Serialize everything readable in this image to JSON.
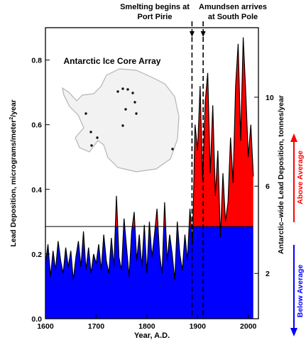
{
  "chart_data": {
    "type": "area",
    "title": "",
    "inset_label": "Antarctic Ice Core Array",
    "xlabel": "Year, A.D.",
    "ylabel": "Lead Deposition, micrograms/meter",
    "ylabel_sup": "2",
    "ylabel_tail": "/year",
    "y2label": "Antarctic–wide Lead Deposition, tonnes/year",
    "xlim": [
      1600,
      2020
    ],
    "ylim": [
      0,
      0.9
    ],
    "baseline": 0.285,
    "x_ticks": [
      "1600",
      "1700",
      "1800",
      "1900",
      "2000"
    ],
    "y_ticks": [
      "0.0",
      "0.2",
      "0.4",
      "0.6",
      "0.8"
    ],
    "y2_ticks": [
      {
        "label": "2",
        "y": 0.14
      },
      {
        "label": "6",
        "y": 0.41
      },
      {
        "label": "10",
        "y": 0.685
      }
    ],
    "colors": {
      "above": "#ff0000",
      "below": "#0000ff",
      "line": "#000000"
    },
    "legend": {
      "above": "Above Average",
      "below": "Below Average"
    },
    "events": [
      {
        "x": 1889,
        "label1": "Smelting begins at",
        "label2": "Port Pirie"
      },
      {
        "x": 1911,
        "label1": "Amundsen arrives",
        "label2": "at South Pole"
      }
    ],
    "series": [
      {
        "x": [
          1600,
          1605,
          1610,
          1615,
          1620,
          1625,
          1630,
          1635,
          1640,
          1645,
          1650,
          1655,
          1660,
          1665,
          1670,
          1675,
          1680,
          1685,
          1690,
          1695,
          1700,
          1705,
          1710,
          1715,
          1720,
          1725,
          1730,
          1735,
          1740,
          1745,
          1750,
          1755,
          1760,
          1765,
          1770,
          1775,
          1780,
          1785,
          1790,
          1795,
          1800,
          1805,
          1810,
          1815,
          1820,
          1825,
          1830,
          1835,
          1840,
          1845,
          1850,
          1855,
          1860,
          1865,
          1870,
          1875,
          1880,
          1885,
          1890,
          1895,
          1900,
          1905,
          1910,
          1915,
          1920,
          1925,
          1930,
          1935,
          1940,
          1945,
          1950,
          1955,
          1960,
          1965,
          1970,
          1975,
          1980,
          1985,
          1990,
          1995,
          2000,
          2005,
          2010
        ],
        "values": [
          0.17,
          0.23,
          0.13,
          0.21,
          0.15,
          0.24,
          0.18,
          0.14,
          0.22,
          0.16,
          0.21,
          0.12,
          0.19,
          0.24,
          0.16,
          0.27,
          0.15,
          0.22,
          0.14,
          0.2,
          0.17,
          0.23,
          0.15,
          0.26,
          0.18,
          0.14,
          0.25,
          0.16,
          0.38,
          0.19,
          0.15,
          0.31,
          0.22,
          0.13,
          0.27,
          0.33,
          0.18,
          0.26,
          0.16,
          0.29,
          0.14,
          0.3,
          0.19,
          0.26,
          0.34,
          0.2,
          0.14,
          0.36,
          0.18,
          0.26,
          0.2,
          0.12,
          0.3,
          0.2,
          0.15,
          0.26,
          0.18,
          0.34,
          0.23,
          0.6,
          0.52,
          0.72,
          0.43,
          0.67,
          0.76,
          0.45,
          0.66,
          0.38,
          0.52,
          0.25,
          0.45,
          0.3,
          0.36,
          0.56,
          0.42,
          0.72,
          0.85,
          0.55,
          0.87,
          0.7,
          0.5,
          0.6,
          0.44
        ]
      }
    ]
  }
}
